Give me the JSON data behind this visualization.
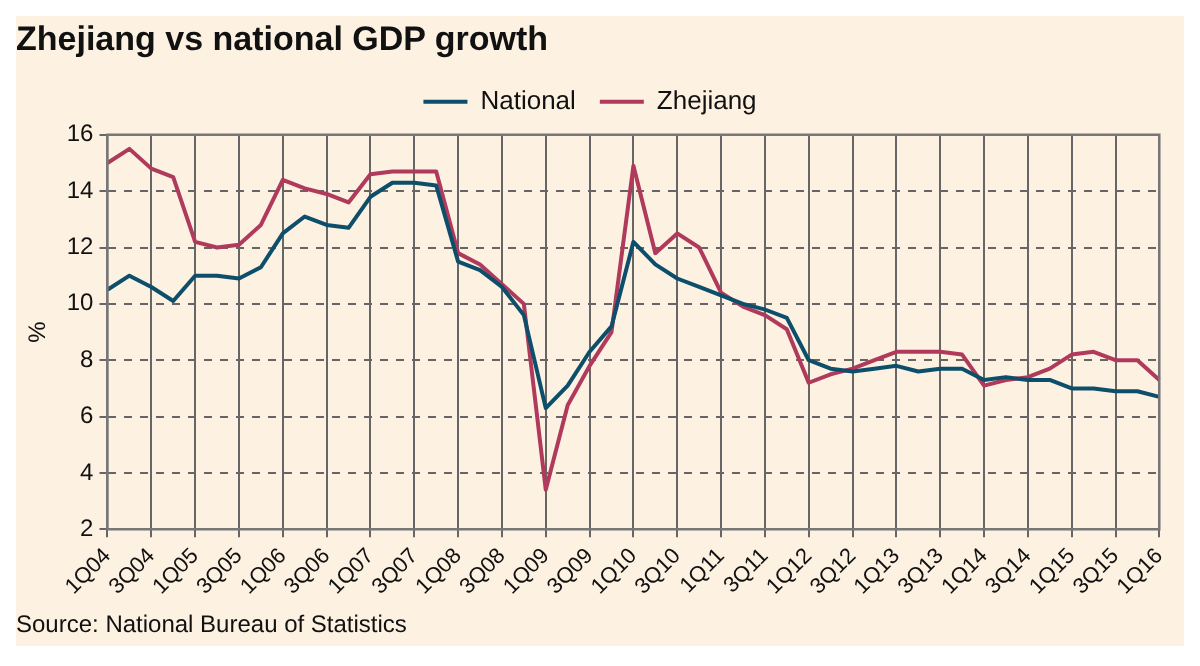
{
  "chart_data": {
    "type": "line",
    "title": "Zhejiang vs national GDP growth",
    "ylabel": "%",
    "categories": [
      "1Q04",
      null,
      "3Q04",
      null,
      "1Q05",
      null,
      "3Q05",
      null,
      "1Q06",
      null,
      "3Q06",
      null,
      "1Q07",
      null,
      "3Q07",
      null,
      "1Q08",
      null,
      "3Q08",
      null,
      "1Q09",
      null,
      "3Q09",
      null,
      "1Q10",
      null,
      "3Q10",
      null,
      "1Q11",
      null,
      "3Q11",
      null,
      "1Q12",
      null,
      "3Q12",
      null,
      "1Q13",
      null,
      "3Q13",
      null,
      "1Q14",
      null,
      "3Q14",
      null,
      "1Q15",
      null,
      "3Q15",
      null,
      "1Q16"
    ],
    "series": [
      {
        "name": "National",
        "color": "#0d4f6b",
        "values": [
          10.5,
          11.0,
          10.6,
          10.1,
          11.0,
          11.0,
          10.9,
          11.3,
          12.5,
          13.1,
          12.8,
          12.7,
          13.8,
          14.3,
          14.3,
          14.2,
          11.5,
          11.2,
          10.6,
          9.6,
          6.3,
          7.1,
          8.3,
          9.2,
          12.2,
          11.4,
          10.9,
          10.6,
          10.3,
          10.0,
          9.8,
          9.5,
          8.0,
          7.7,
          7.6,
          7.7,
          7.8,
          7.6,
          7.7,
          7.7,
          7.3,
          7.4,
          7.3,
          7.3,
          7.0,
          7.0,
          6.9,
          6.9,
          6.7
        ]
      },
      {
        "name": "Zhejiang",
        "color": "#b03a5b",
        "values": [
          15.0,
          15.5,
          14.8,
          14.5,
          12.2,
          12.0,
          12.1,
          12.8,
          14.4,
          14.1,
          13.9,
          13.6,
          14.6,
          14.7,
          14.7,
          14.7,
          11.8,
          11.4,
          10.7,
          10.0,
          3.4,
          6.4,
          7.8,
          9.0,
          14.9,
          11.8,
          12.5,
          12.0,
          10.4,
          9.9,
          9.6,
          9.1,
          7.2,
          7.5,
          7.7,
          8.0,
          8.3,
          8.3,
          8.3,
          8.2,
          7.1,
          7.3,
          7.4,
          7.7,
          8.2,
          8.3,
          8.0,
          8.0,
          7.3
        ]
      }
    ],
    "ylim": [
      2,
      16
    ],
    "yticks": [
      2,
      4,
      6,
      8,
      10,
      12,
      14,
      16
    ],
    "grid": true,
    "legend": "top",
    "marker": "none",
    "line_style": "solid",
    "annotations": [
      "Source: National Bureau of Statistics"
    ]
  }
}
